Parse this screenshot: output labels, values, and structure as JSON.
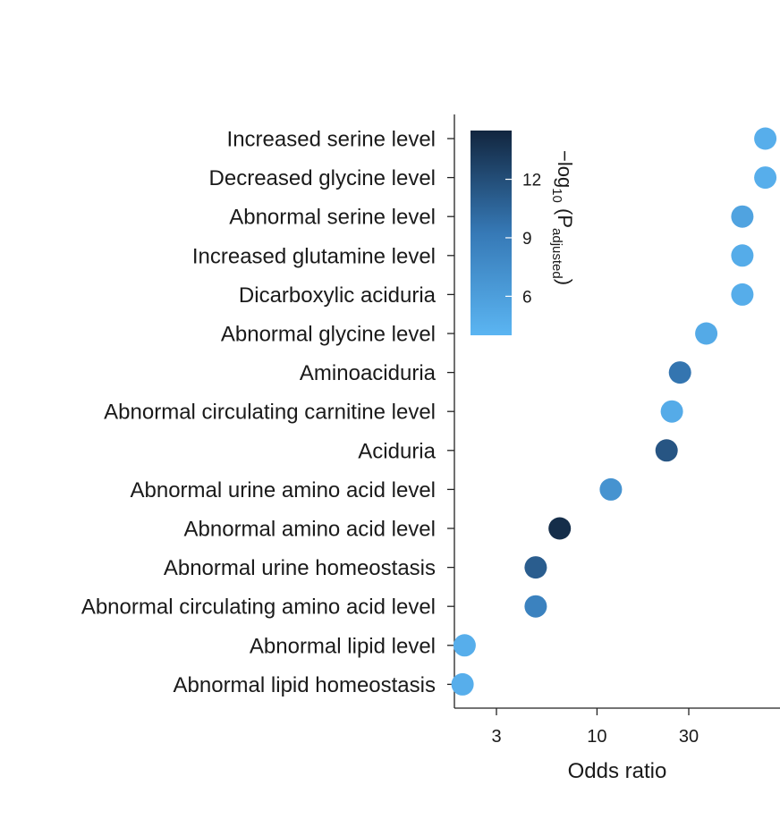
{
  "chart_data": {
    "type": "scatter",
    "title": "",
    "xlabel": "Odds ratio",
    "ylabel": "",
    "xscale": "log",
    "xlim": [
      1.75,
      85
    ],
    "xticks": [
      3,
      10,
      30
    ],
    "categories": [
      "Increased serine level",
      "Decreased glycine level",
      "Abnormal serine level",
      "Increased glutamine level",
      "Dicarboxylic aciduria",
      "Abnormal glycine level",
      "Aminoaciduria",
      "Abnormal circulating carnitine level",
      "Aciduria",
      "Abnormal urine amino acid level",
      "Abnormal amino acid level",
      "Abnormal urine homeostasis",
      "Abnormal circulating amino acid level",
      "Abnormal lipid level",
      "Abnormal lipid homeostasis"
    ],
    "points": [
      {
        "category": "Increased serine level",
        "odds_ratio": 75,
        "neg_log10_p_adjusted": 4.6
      },
      {
        "category": "Decreased glycine level",
        "odds_ratio": 75,
        "neg_log10_p_adjusted": 4.6
      },
      {
        "category": "Abnormal serine level",
        "odds_ratio": 57,
        "neg_log10_p_adjusted": 5.6
      },
      {
        "category": "Increased glutamine level",
        "odds_ratio": 57,
        "neg_log10_p_adjusted": 4.8
      },
      {
        "category": "Dicarboxylic aciduria",
        "odds_ratio": 57,
        "neg_log10_p_adjusted": 4.7
      },
      {
        "category": "Abnormal glycine level",
        "odds_ratio": 37,
        "neg_log10_p_adjusted": 5.0
      },
      {
        "category": "Aminoaciduria",
        "odds_ratio": 27,
        "neg_log10_p_adjusted": 9.5
      },
      {
        "category": "Abnormal circulating carnitine level",
        "odds_ratio": 24.5,
        "neg_log10_p_adjusted": 4.9
      },
      {
        "category": "Aciduria",
        "odds_ratio": 23,
        "neg_log10_p_adjusted": 11.5
      },
      {
        "category": "Abnormal urine amino acid level",
        "odds_ratio": 11.8,
        "neg_log10_p_adjusted": 7.0
      },
      {
        "category": "Abnormal amino acid level",
        "odds_ratio": 6.4,
        "neg_log10_p_adjusted": 14.0
      },
      {
        "category": "Abnormal urine homeostasis",
        "odds_ratio": 4.8,
        "neg_log10_p_adjusted": 11.0
      },
      {
        "category": "Abnormal circulating amino acid level",
        "odds_ratio": 4.8,
        "neg_log10_p_adjusted": 8.5
      },
      {
        "category": "Abnormal lipid level",
        "odds_ratio": 2.05,
        "neg_log10_p_adjusted": 4.6
      },
      {
        "category": "Abnormal lipid homeostasis",
        "odds_ratio": 2.0,
        "neg_log10_p_adjusted": 4.6
      }
    ],
    "colorbar": {
      "title_main": "−log",
      "title_sub": "10",
      "title_p": " (P",
      "title_p_sub": "adjusted",
      "title_close": ")",
      "ticks": [
        6,
        9,
        12
      ],
      "range": [
        4.0,
        14.5
      ],
      "color_low": "#5bb5f2",
      "color_mid": "#3679b6",
      "color_high": "#12263f",
      "placement": "inside-top-left"
    },
    "grid": false,
    "legend": "none"
  }
}
